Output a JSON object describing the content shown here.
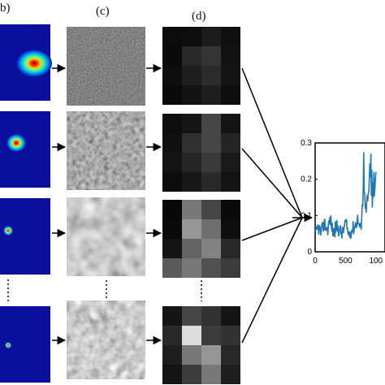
{
  "panel_labels": [
    "b)",
    "(c)",
    "(d)"
  ],
  "colors": {
    "heatmap_background": "#0a0f9e",
    "arrow": "#000000",
    "plot_line": "#1f77b4"
  },
  "chart_data": {
    "type": "line",
    "x_tick_labels": [
      "0",
      "500",
      "100"
    ],
    "y_tick_labels": [
      "0",
      "0.1",
      "0.2",
      "0.3"
    ],
    "ylim": [
      0,
      0.3
    ],
    "xlim": [
      0,
      1000
    ],
    "series": [
      {
        "x": [
          0,
          50,
          100,
          150,
          200,
          250,
          300,
          350,
          400,
          450,
          500,
          550,
          600,
          650,
          700,
          750,
          800,
          850,
          900,
          950,
          1000
        ],
        "values": [
          0.04,
          0.07,
          0.05,
          0.08,
          0.06,
          0.09,
          0.05,
          0.07,
          0.06,
          0.05,
          0.08,
          0.05,
          0.06,
          0.07,
          0.09,
          0.06,
          0.18,
          0.08,
          0.23,
          0.12,
          0.22
        ]
      }
    ]
  }
}
